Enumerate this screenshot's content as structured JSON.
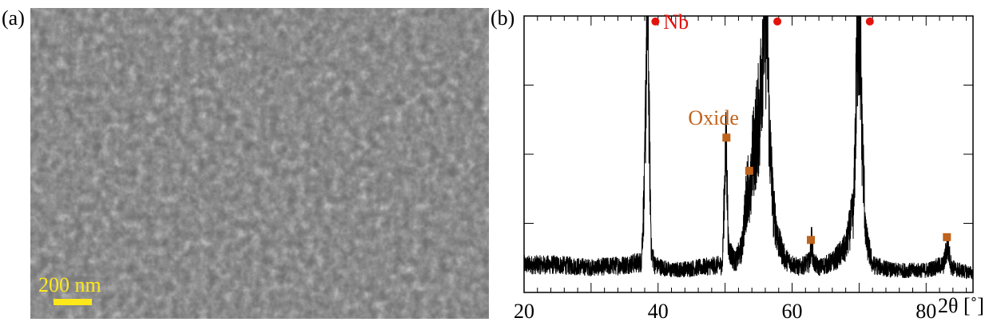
{
  "panels": {
    "a_label": "(a)",
    "b_label": "(b)"
  },
  "sem": {
    "scale_bar_label": "200 nm",
    "scale_bar_color": "#ffe81a"
  },
  "colors": {
    "nb_marker": "#e3120b",
    "oxide_marker": "#c0631c"
  },
  "chart_data": {
    "type": "line",
    "xlabel": "2θ [˚]",
    "ylabel": "",
    "title": "",
    "xlim": [
      20,
      87
    ],
    "ylim": [
      0,
      100
    ],
    "xticks": [
      20,
      40,
      60,
      80
    ],
    "x_tick_labels": [
      "20",
      "40",
      "60",
      "80"
    ],
    "series": [
      {
        "x": [
          20,
          25,
          30,
          35,
          37.5,
          38.0,
          38.3,
          38.5,
          38.7,
          39.0,
          39.5,
          42,
          46,
          49.6,
          50.0,
          50.2,
          50.5,
          51.5,
          52.5,
          53.4,
          53.7,
          54.0,
          54.5,
          55.2,
          55.7,
          56.0,
          56.3,
          56.6,
          57.2,
          58,
          59,
          61,
          62.6,
          62.9,
          63.2,
          64,
          66,
          68,
          69.2,
          69.8,
          70.1,
          70.4,
          71.0,
          72,
          75,
          80,
          82.6,
          83.2,
          83.8,
          85,
          87
        ],
        "y": [
          10,
          10,
          9,
          10,
          11,
          40,
          100,
          100,
          55,
          15,
          10,
          8,
          9,
          10,
          46,
          52,
          16,
          11,
          16,
          40,
          30,
          47,
          55,
          66,
          100,
          100,
          100,
          58,
          30,
          18,
          12,
          9,
          11,
          19,
          11,
          9,
          11,
          16,
          30,
          100,
          100,
          60,
          20,
          10,
          8,
          8,
          10,
          17,
          9,
          8,
          7
        ]
      }
    ],
    "annotations": [
      {
        "text": "Nb",
        "x": 39.6,
        "y": 98,
        "marker": "circle",
        "color": "#e3120b"
      },
      {
        "text": "",
        "x": 57.8,
        "y": 98,
        "marker": "circle",
        "color": "#e3120b"
      },
      {
        "text": "",
        "x": 71.6,
        "y": 98,
        "marker": "circle",
        "color": "#e3120b"
      },
      {
        "text": "Oxide",
        "x": 50.2,
        "y": 56,
        "marker": "square",
        "color": "#c0631c"
      },
      {
        "text": "",
        "x": 53.6,
        "y": 44,
        "marker": "square",
        "color": "#c0631c"
      },
      {
        "text": "",
        "x": 62.8,
        "y": 19,
        "marker": "square",
        "color": "#c0631c"
      },
      {
        "text": "",
        "x": 83.1,
        "y": 20,
        "marker": "square",
        "color": "#c0631c"
      }
    ]
  }
}
